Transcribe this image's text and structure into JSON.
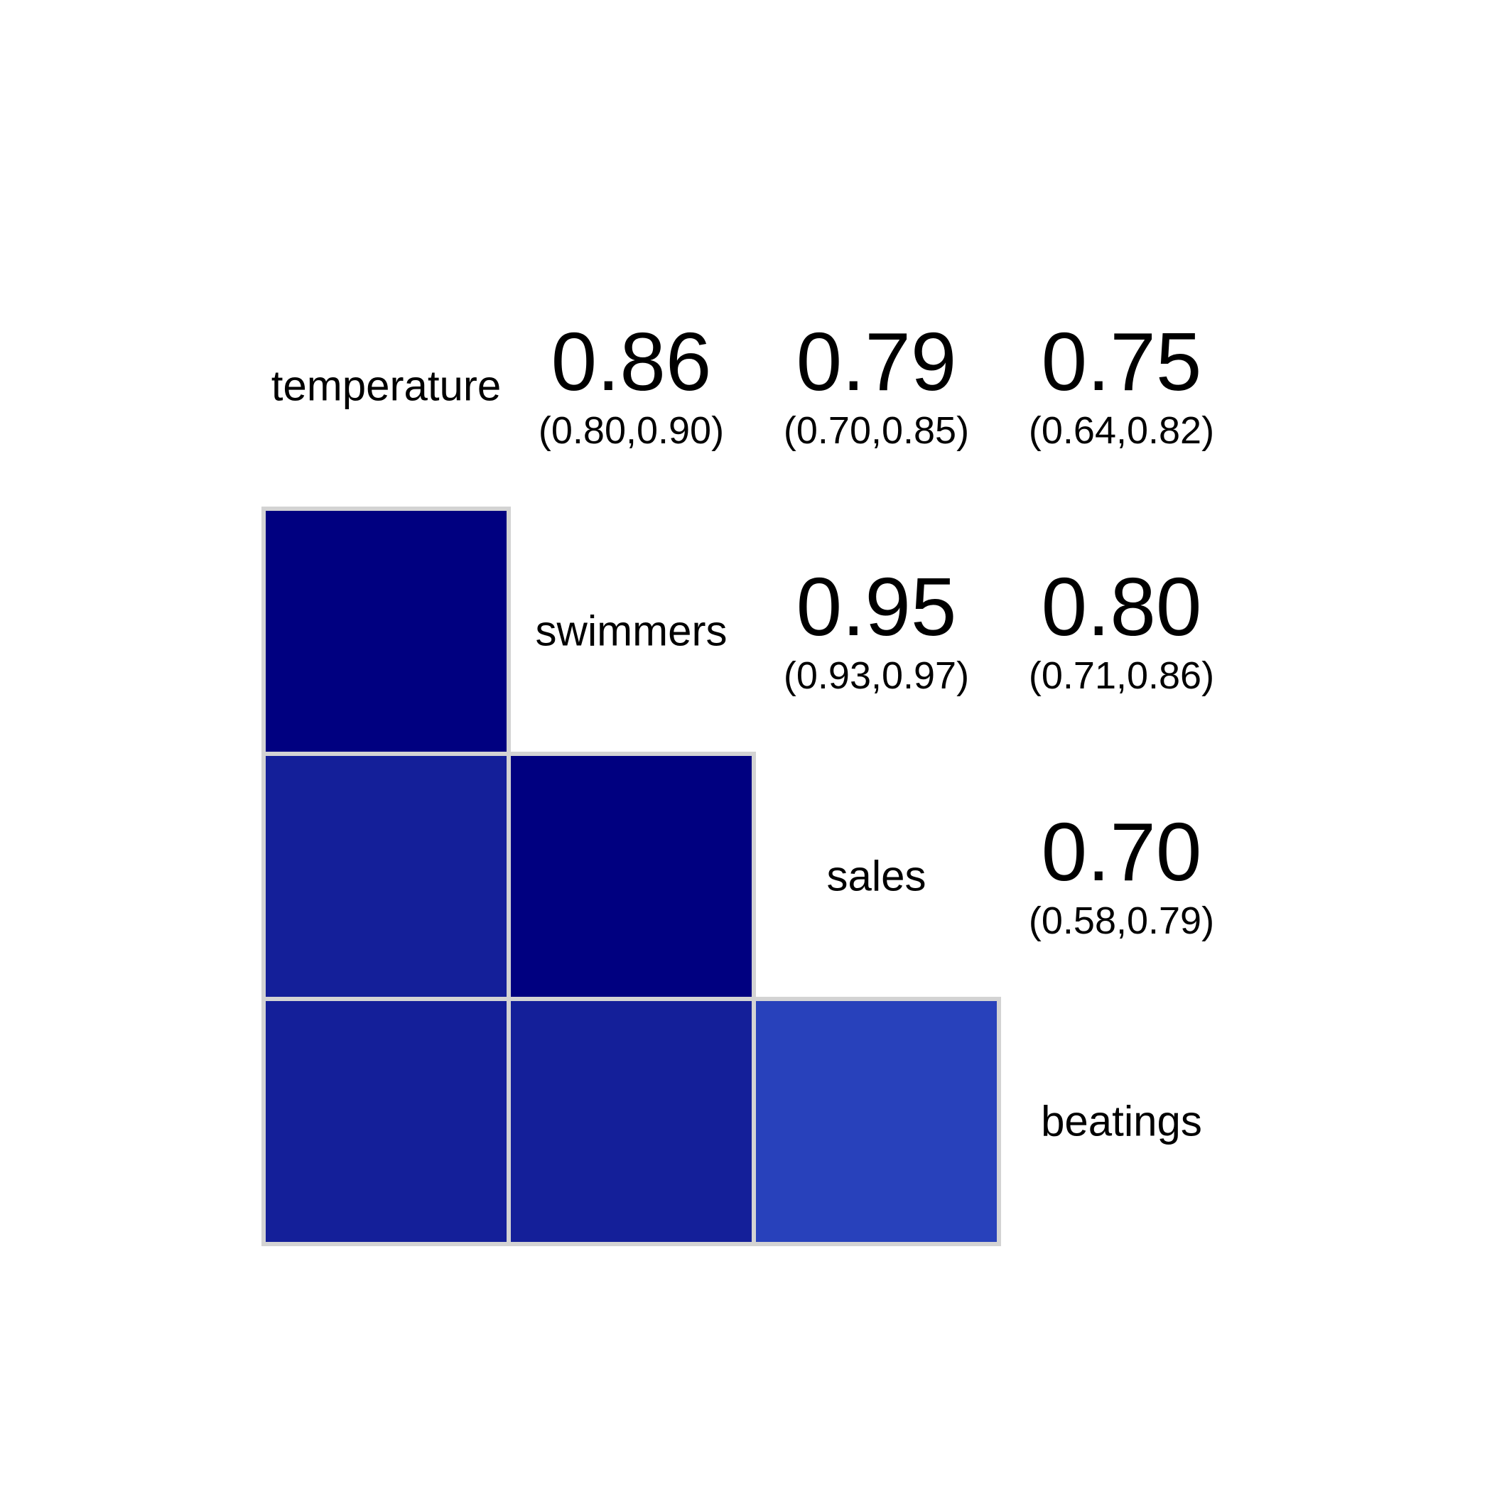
{
  "chart_data": {
    "type": "heatmap",
    "variables": [
      "temperature",
      "swimmers",
      "sales",
      "beatings"
    ],
    "cells": [
      {
        "row": 0,
        "col": 1,
        "r": 0.86,
        "label": "0.86",
        "ci": "(0.80,0.90)",
        "color": "#000080"
      },
      {
        "row": 0,
        "col": 2,
        "r": 0.79,
        "label": "0.79",
        "ci": "(0.70,0.85)",
        "color": "#141f99"
      },
      {
        "row": 0,
        "col": 3,
        "r": 0.75,
        "label": "0.75",
        "ci": "(0.64,0.82)",
        "color": "#141f99"
      },
      {
        "row": 1,
        "col": 2,
        "r": 0.95,
        "label": "0.95",
        "ci": "(0.93,0.97)",
        "color": "#000080"
      },
      {
        "row": 1,
        "col": 3,
        "r": 0.8,
        "label": "0.80",
        "ci": "(0.71,0.86)",
        "color": "#141f99"
      },
      {
        "row": 2,
        "col": 3,
        "r": 0.7,
        "label": "0.70",
        "ci": "(0.58,0.79)",
        "color": "#2841bb"
      }
    ],
    "lower_panel": "shade",
    "upper_panel": "correlation with confidence interval",
    "border_color": "#d3d3d3"
  }
}
